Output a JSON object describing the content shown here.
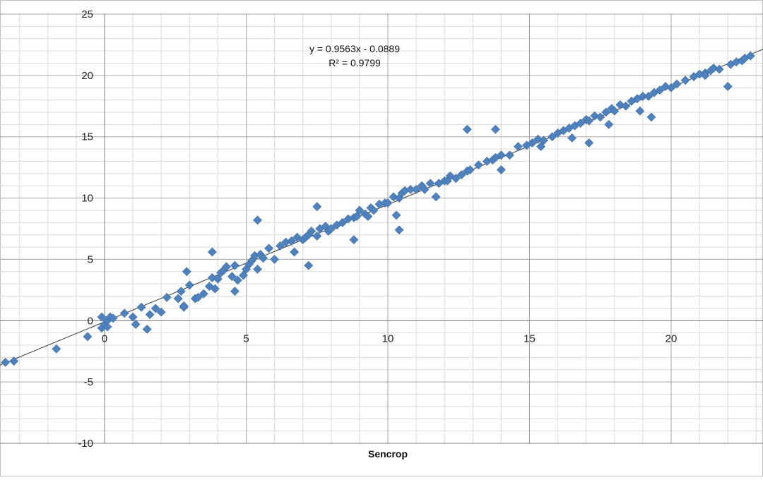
{
  "chart_data": {
    "type": "scatter",
    "title": "",
    "xlabel": "Sencrop",
    "ylabel": "",
    "xlim": [
      -3.7,
      23.3
    ],
    "ylim": [
      -10,
      25
    ],
    "x_ticks": [
      0,
      5,
      10,
      15,
      20
    ],
    "x_tick_labels": [
      "0",
      "5",
      "10",
      "15",
      "20"
    ],
    "y_ticks": [
      -10,
      -5,
      0,
      5,
      10,
      15,
      20,
      25
    ],
    "y_tick_labels": [
      "-10",
      "-5",
      "0",
      "5",
      "10",
      "15",
      "20",
      "25"
    ],
    "grid": true,
    "legend": "none",
    "marker_color": "#4F81BD",
    "trendline": {
      "type": "linear",
      "slope": 0.9563,
      "intercept": -0.0889,
      "equation_label": "y = 0.9563x - 0.0889",
      "r2_label": "R² = 0.9799",
      "color": "#333333"
    },
    "series": [
      {
        "x": [
          -3.5,
          -3.2,
          -1.7,
          -0.6,
          -0.1,
          0.0,
          0.1,
          0.2,
          0.3,
          -0.1,
          0.1,
          0.7,
          1.0,
          1.1,
          1.3,
          1.5,
          1.6,
          1.8,
          2.0,
          2.2,
          2.6,
          2.7,
          2.8,
          2.8,
          3.0,
          3.2,
          3.3,
          3.5,
          3.7,
          3.8,
          3.9,
          4.0,
          4.1,
          4.2,
          4.3,
          4.5,
          4.6,
          4.7,
          4.9,
          5.0,
          5.1,
          5.2,
          5.3,
          5.4,
          5.5,
          5.6,
          5.8,
          6.0,
          6.2,
          6.4,
          6.6,
          6.8,
          7.0,
          7.1,
          7.2,
          7.3,
          7.5,
          7.6,
          7.8,
          7.9,
          8.0,
          8.2,
          8.4,
          8.6,
          8.8,
          8.9,
          9.0,
          9.2,
          9.4,
          9.5,
          9.7,
          9.9,
          10.0,
          10.2,
          10.4,
          10.5,
          10.6,
          10.8,
          11.0,
          11.2,
          11.3,
          11.5,
          11.8,
          12.0,
          12.2,
          12.4,
          12.6,
          12.8,
          12.9,
          13.2,
          13.5,
          13.7,
          13.8,
          14.0,
          14.3,
          14.6,
          14.9,
          15.1,
          15.3,
          15.5,
          15.8,
          16.0,
          16.2,
          16.4,
          16.6,
          16.8,
          17.0,
          17.1,
          17.3,
          17.5,
          17.7,
          17.9,
          18.0,
          18.2,
          18.4,
          18.6,
          18.8,
          19.0,
          19.2,
          19.4,
          19.6,
          19.8,
          20.0,
          20.2,
          20.5,
          20.8,
          21.0,
          21.2,
          21.4,
          21.5,
          21.7,
          22.1,
          22.3,
          22.5,
          22.6,
          22.8,
          10.4,
          5.4,
          7.2,
          3.8,
          12.8,
          13.8,
          7.5,
          2.9,
          4.6,
          8.8,
          10.3,
          14.0,
          17.1,
          17.8,
          19.3,
          21.2,
          22.0,
          16.5,
          15.4,
          11.7,
          6.7,
          9.3,
          12.1,
          18.9
        ],
        "y": [
          -3.4,
          -3.3,
          -2.3,
          -1.3,
          -0.6,
          -0.3,
          0.0,
          0.3,
          0.2,
          0.3,
          -0.5,
          0.6,
          0.3,
          -0.3,
          1.1,
          -0.7,
          0.5,
          1.0,
          0.7,
          1.9,
          1.8,
          2.4,
          1.1,
          1.2,
          2.9,
          1.8,
          1.9,
          2.2,
          2.8,
          3.5,
          2.6,
          3.4,
          3.9,
          4.1,
          4.4,
          3.6,
          4.5,
          3.3,
          3.7,
          4.2,
          4.6,
          4.9,
          5.3,
          4.2,
          5.4,
          5.1,
          5.9,
          5.0,
          6.1,
          6.4,
          6.5,
          6.8,
          6.6,
          6.8,
          7.0,
          7.3,
          6.9,
          7.5,
          7.7,
          7.3,
          7.5,
          7.8,
          8.0,
          8.3,
          8.4,
          8.5,
          9.0,
          8.7,
          9.2,
          9.0,
          9.5,
          9.6,
          9.6,
          10.1,
          10.0,
          10.4,
          10.6,
          10.7,
          10.7,
          11.0,
          10.7,
          11.2,
          11.2,
          11.4,
          11.8,
          11.6,
          11.9,
          12.2,
          12.3,
          12.7,
          13.0,
          13.1,
          13.3,
          13.5,
          13.5,
          14.2,
          14.3,
          14.5,
          14.8,
          14.7,
          15.0,
          15.3,
          15.5,
          15.7,
          15.9,
          16.1,
          16.4,
          16.3,
          16.7,
          16.6,
          17.0,
          17.3,
          17.1,
          17.6,
          17.5,
          17.9,
          18.1,
          18.3,
          18.3,
          18.6,
          18.8,
          19.1,
          19.0,
          19.3,
          19.6,
          19.9,
          20.1,
          20.2,
          20.4,
          20.6,
          20.5,
          20.9,
          21.1,
          21.2,
          21.4,
          21.6,
          7.4,
          8.2,
          4.5,
          5.6,
          15.6,
          15.6,
          9.3,
          4.0,
          2.4,
          6.6,
          8.6,
          12.3,
          14.5,
          16.0,
          16.6,
          20.0,
          19.1,
          14.9,
          14.2,
          10.1,
          5.6,
          8.5,
          11.4,
          17.1
        ]
      }
    ]
  }
}
